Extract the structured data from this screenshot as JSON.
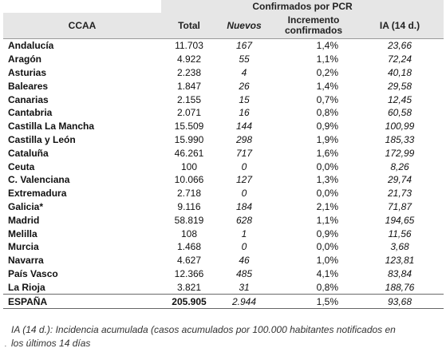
{
  "header": {
    "group": "Confirmados por PCR",
    "ccaa": "CCAA",
    "total": "Total",
    "nuevos": "Nuevos",
    "incremento": "Incremento confirmados",
    "ia": "IA (14 d.)"
  },
  "rows": [
    {
      "ccaa": "Andalucía",
      "total": "11.703",
      "nuevos": "167",
      "inc": "1,4%",
      "ia": "23,66"
    },
    {
      "ccaa": "Aragón",
      "total": "4.922",
      "nuevos": "55",
      "inc": "1,1%",
      "ia": "72,24"
    },
    {
      "ccaa": "Asturias",
      "total": "2.238",
      "nuevos": "4",
      "inc": "0,2%",
      "ia": "40,18"
    },
    {
      "ccaa": "Baleares",
      "total": "1.847",
      "nuevos": "26",
      "inc": "1,4%",
      "ia": "29,58"
    },
    {
      "ccaa": "Canarias",
      "total": "2.155",
      "nuevos": "15",
      "inc": "0,7%",
      "ia": "12,45"
    },
    {
      "ccaa": "Cantabria",
      "total": "2.071",
      "nuevos": "16",
      "inc": "0,8%",
      "ia": "60,58"
    },
    {
      "ccaa": "Castilla La Mancha",
      "total": "15.509",
      "nuevos": "144",
      "inc": "0,9%",
      "ia": "100,99"
    },
    {
      "ccaa": "Castilla y León",
      "total": "15.990",
      "nuevos": "298",
      "inc": "1,9%",
      "ia": "185,33"
    },
    {
      "ccaa": "Cataluña",
      "total": "46.261",
      "nuevos": "717",
      "inc": "1,6%",
      "ia": "172,99"
    },
    {
      "ccaa": "Ceuta",
      "total": "100",
      "nuevos": "0",
      "inc": "0,0%",
      "ia": "8,26"
    },
    {
      "ccaa": "C. Valenciana",
      "total": "10.066",
      "nuevos": "127",
      "inc": "1,3%",
      "ia": "29,74"
    },
    {
      "ccaa": "Extremadura",
      "total": "2.718",
      "nuevos": "0",
      "inc": "0,0%",
      "ia": "21,73"
    },
    {
      "ccaa": "Galicia*",
      "total": "9.116",
      "nuevos": "184",
      "inc": "2,1%",
      "ia": "71,87"
    },
    {
      "ccaa": "Madrid",
      "total": "58.819",
      "nuevos": "628",
      "inc": "1,1%",
      "ia": "194,65"
    },
    {
      "ccaa": "Melilla",
      "total": "108",
      "nuevos": "1",
      "inc": "0,9%",
      "ia": "11,56"
    },
    {
      "ccaa": "Murcia",
      "total": "1.468",
      "nuevos": "0",
      "inc": "0,0%",
      "ia": "3,68"
    },
    {
      "ccaa": "Navarra",
      "total": "4.627",
      "nuevos": "46",
      "inc": "1,0%",
      "ia": "123,81"
    },
    {
      "ccaa": "País Vasco",
      "total": "12.366",
      "nuevos": "485",
      "inc": "4,1%",
      "ia": "83,84"
    },
    {
      "ccaa": "La Rioja",
      "total": "3.821",
      "nuevos": "31",
      "inc": "0,8%",
      "ia": "188,76"
    }
  ],
  "total_row": {
    "ccaa": "ESPAÑA",
    "total": "205.905",
    "nuevos": "2.944",
    "inc": "1,5%",
    "ia": "93,68"
  },
  "footnote": {
    "line1": "IA (14 d.): Incidencia acumulada (casos acumulados por 100.000 habitantes notificados en",
    "line2": "los últimos 14 días",
    "mark": "."
  }
}
